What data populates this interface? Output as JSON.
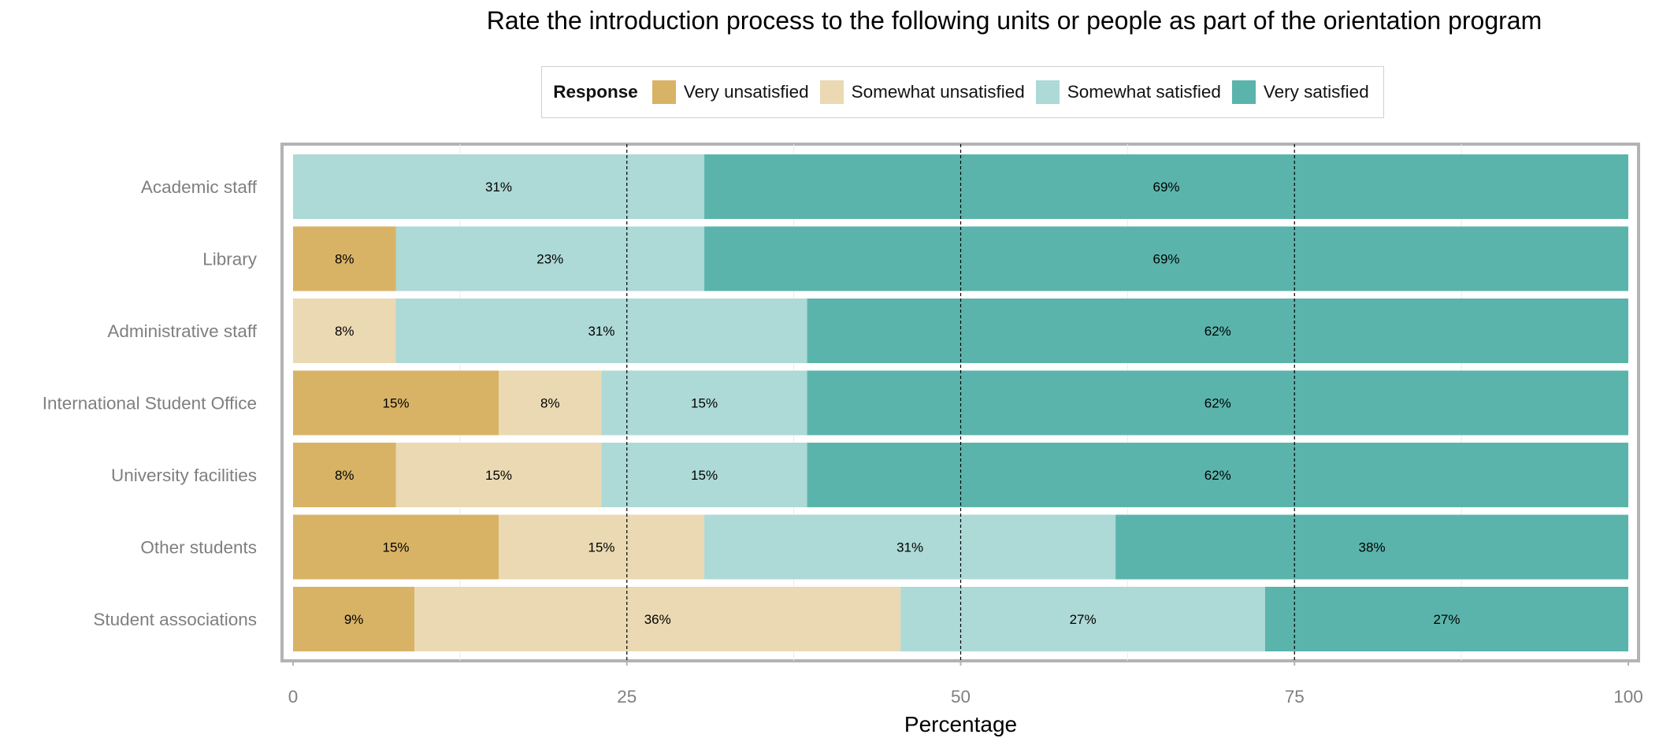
{
  "title": "Rate the introduction process to the following units or people as part of the orientation program",
  "legend": {
    "title": "Response",
    "items": [
      {
        "label": "Very unsatisfied",
        "color": "#D8B365"
      },
      {
        "label": "Somewhat unsatisfied",
        "color": "#EAD9B2"
      },
      {
        "label": "Somewhat satisfied",
        "color": "#ADD9D6"
      },
      {
        "label": "Very satisfied",
        "color": "#5AB4AC"
      }
    ]
  },
  "chart_data": {
    "type": "bar",
    "orientation": "horizontal",
    "stacked": true,
    "title": "Rate the introduction process to the following units or people as part of the orientation program",
    "xlabel": "Percentage",
    "ylabel": "",
    "xlim": [
      0,
      100
    ],
    "xticks": [
      0,
      25,
      50,
      75,
      100
    ],
    "reference_lines": [
      25,
      50,
      75
    ],
    "legend_position": "top",
    "categories": [
      "Academic staff",
      "Library",
      "Administrative staff",
      "International Student Office",
      "University facilities",
      "Other students",
      "Student associations"
    ],
    "series": [
      {
        "name": "Very unsatisfied",
        "color": "#D8B365",
        "values": [
          0,
          7.7,
          0,
          15.4,
          7.7,
          15.4,
          9.1
        ],
        "labels": [
          "",
          "8%",
          "",
          "15%",
          "8%",
          "15%",
          "9%"
        ]
      },
      {
        "name": "Somewhat unsatisfied",
        "color": "#EAD9B2",
        "values": [
          0,
          0,
          7.7,
          7.7,
          15.4,
          15.4,
          36.4
        ],
        "labels": [
          "",
          "",
          "8%",
          "8%",
          "15%",
          "15%",
          "36%"
        ]
      },
      {
        "name": "Somewhat satisfied",
        "color": "#ADD9D6",
        "values": [
          30.8,
          23.1,
          30.8,
          15.4,
          15.4,
          30.8,
          27.3
        ],
        "labels": [
          "31%",
          "23%",
          "31%",
          "15%",
          "15%",
          "31%",
          "27%"
        ]
      },
      {
        "name": "Very satisfied",
        "color": "#5AB4AC",
        "values": [
          69.2,
          69.2,
          61.5,
          61.5,
          61.5,
          38.4,
          27.2
        ],
        "labels": [
          "69%",
          "69%",
          "62%",
          "62%",
          "62%",
          "38%",
          "27%"
        ]
      }
    ]
  }
}
